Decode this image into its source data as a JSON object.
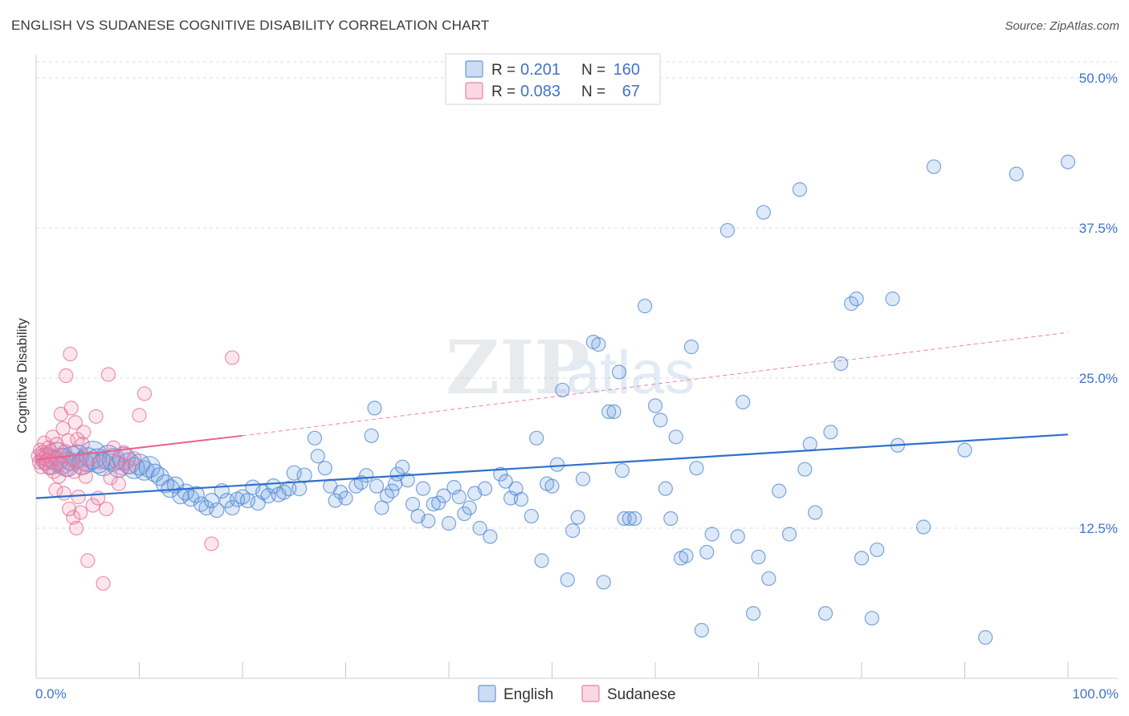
{
  "title": "ENGLISH VS SUDANESE COGNITIVE DISABILITY CORRELATION CHART",
  "source": "Source: ZipAtlas.com",
  "chart_data": {
    "type": "scatter",
    "ylabel": "Cognitive Disability",
    "xlim": [
      0,
      100
    ],
    "ylim": [
      0,
      50
    ],
    "x_tick_labels": [
      "0.0%",
      "100.0%"
    ],
    "y_ticks": [
      12.5,
      25.0,
      37.5,
      50.0
    ],
    "y_tick_labels": [
      "12.5%",
      "25.0%",
      "37.5%",
      "50.0%"
    ],
    "grid": true,
    "legend_placement": "top-center",
    "legend_bottom": [
      "English",
      "Sudanese"
    ],
    "stats": [
      {
        "r_label": "R =",
        "r": "0.201",
        "n_label": "N =",
        "n": "160"
      },
      {
        "r_label": "R =",
        "r": "0.083",
        "n_label": "N =",
        "n": "67"
      }
    ],
    "colors": {
      "english": "#6b9de0",
      "english_line": "#2f6fce",
      "sudanese": "#ef8fb0",
      "sudanese_line": "#e8628f",
      "axis_text": "#3f74c8"
    },
    "series": [
      {
        "name": "English",
        "trend": [
          [
            0,
            15.0
          ],
          [
            100,
            20.3
          ]
        ],
        "points": [
          [
            1,
            18.3
          ],
          [
            1.5,
            18
          ],
          [
            2,
            18.5
          ],
          [
            2.5,
            18.1
          ],
          [
            3,
            17.8
          ],
          [
            3.5,
            18.3
          ],
          [
            4,
            18.5
          ],
          [
            4.5,
            17.9
          ],
          [
            5,
            18.2
          ],
          [
            5.5,
            18.6
          ],
          [
            6,
            18.1
          ],
          [
            6.5,
            17.8
          ],
          [
            7,
            18.4
          ],
          [
            7.5,
            18.2
          ],
          [
            8,
            17.6
          ],
          [
            8.5,
            18.3
          ],
          [
            9,
            17.9
          ],
          [
            9.5,
            17.5
          ],
          [
            10,
            17.8
          ],
          [
            10.5,
            17.3
          ],
          [
            11,
            17.6
          ],
          [
            11.5,
            17.1
          ],
          [
            12,
            16.8
          ],
          [
            12.5,
            16.2
          ],
          [
            13,
            15.8
          ],
          [
            13.5,
            16.1
          ],
          [
            14,
            15.2
          ],
          [
            14.5,
            15.5
          ],
          [
            15,
            15.0
          ],
          [
            15.5,
            15.3
          ],
          [
            16,
            14.5
          ],
          [
            16.5,
            14.2
          ],
          [
            17,
            14.8
          ],
          [
            17.5,
            14.0
          ],
          [
            18,
            15.6
          ],
          [
            18.5,
            14.8
          ],
          [
            19,
            14.2
          ],
          [
            19.5,
            14.9
          ],
          [
            20,
            15.1
          ],
          [
            20.5,
            14.8
          ],
          [
            21,
            15.9
          ],
          [
            21.5,
            14.6
          ],
          [
            22,
            15.5
          ],
          [
            22.5,
            15.2
          ],
          [
            23,
            16.0
          ],
          [
            23.5,
            15.3
          ],
          [
            24,
            15.5
          ],
          [
            24.5,
            15.8
          ],
          [
            25,
            17.1
          ],
          [
            25.5,
            15.8
          ],
          [
            26,
            16.9
          ],
          [
            27,
            20.0
          ],
          [
            27.3,
            18.5
          ],
          [
            28,
            17.5
          ],
          [
            28.5,
            16.0
          ],
          [
            29,
            14.8
          ],
          [
            29.5,
            15.5
          ],
          [
            30,
            15.0
          ],
          [
            31,
            16.0
          ],
          [
            31.5,
            16.3
          ],
          [
            32,
            16.9
          ],
          [
            32.5,
            20.2
          ],
          [
            32.8,
            22.5
          ],
          [
            33,
            16.0
          ],
          [
            33.5,
            14.2
          ],
          [
            34,
            15.2
          ],
          [
            34.5,
            15.6
          ],
          [
            34.8,
            16.2
          ],
          [
            35,
            17.0
          ],
          [
            35.5,
            17.6
          ],
          [
            36,
            16.5
          ],
          [
            36.5,
            14.5
          ],
          [
            37,
            13.5
          ],
          [
            37.5,
            15.8
          ],
          [
            38,
            13.1
          ],
          [
            38.5,
            14.5
          ],
          [
            39,
            14.6
          ],
          [
            39.5,
            15.2
          ],
          [
            40,
            12.9
          ],
          [
            40.5,
            15.9
          ],
          [
            41,
            15.1
          ],
          [
            41.5,
            13.7
          ],
          [
            42,
            14.2
          ],
          [
            42.5,
            15.4
          ],
          [
            43,
            12.5
          ],
          [
            43.5,
            15.8
          ],
          [
            44,
            11.8
          ],
          [
            45,
            17.0
          ],
          [
            45.5,
            16.4
          ],
          [
            46,
            15.0
          ],
          [
            46.5,
            15.8
          ],
          [
            47,
            14.9
          ],
          [
            48,
            13.5
          ],
          [
            48.5,
            20.0
          ],
          [
            49,
            9.8
          ],
          [
            49.5,
            16.2
          ],
          [
            50,
            16.0
          ],
          [
            50.5,
            17.8
          ],
          [
            51,
            24.0
          ],
          [
            51.5,
            8.2
          ],
          [
            52,
            12.3
          ],
          [
            52.5,
            13.4
          ],
          [
            53,
            16.6
          ],
          [
            54,
            28.0
          ],
          [
            54.5,
            27.8
          ],
          [
            55,
            8.0
          ],
          [
            55.5,
            22.2
          ],
          [
            56,
            22.2
          ],
          [
            56.5,
            25.5
          ],
          [
            56.8,
            17.3
          ],
          [
            57,
            13.3
          ],
          [
            57.5,
            13.3
          ],
          [
            58,
            13.3
          ],
          [
            59,
            31.0
          ],
          [
            60,
            22.7
          ],
          [
            60.5,
            21.5
          ],
          [
            61,
            15.8
          ],
          [
            61.5,
            13.3
          ],
          [
            62,
            20.1
          ],
          [
            62.5,
            10.0
          ],
          [
            63,
            10.2
          ],
          [
            63.5,
            27.6
          ],
          [
            64,
            17.5
          ],
          [
            64.5,
            4.0
          ],
          [
            65,
            10.5
          ],
          [
            65.5,
            12.0
          ],
          [
            67,
            37.3
          ],
          [
            68,
            11.8
          ],
          [
            68.5,
            23.0
          ],
          [
            69.5,
            5.4
          ],
          [
            70,
            10.1
          ],
          [
            70.5,
            38.8
          ],
          [
            71,
            8.3
          ],
          [
            72,
            15.6
          ],
          [
            73,
            12.0
          ],
          [
            74,
            40.7
          ],
          [
            74.5,
            17.4
          ],
          [
            75,
            19.5
          ],
          [
            75.5,
            13.8
          ],
          [
            76.5,
            5.4
          ],
          [
            77,
            20.5
          ],
          [
            78,
            26.2
          ],
          [
            79,
            31.2
          ],
          [
            79.5,
            31.6
          ],
          [
            80,
            10.0
          ],
          [
            81,
            5.0
          ],
          [
            81.5,
            10.7
          ],
          [
            83,
            31.6
          ],
          [
            83.5,
            19.4
          ],
          [
            86,
            12.6
          ],
          [
            87,
            42.6
          ],
          [
            90,
            19.0
          ],
          [
            92,
            3.4
          ],
          [
            95,
            42.0
          ],
          [
            100,
            43.0
          ]
        ],
        "sizes": [
          28,
          30,
          34,
          32,
          30,
          30,
          28,
          28,
          30,
          34,
          30,
          28,
          30,
          28,
          26,
          28,
          26,
          26,
          26,
          24,
          26,
          22,
          22,
          22,
          22,
          20,
          20,
          20,
          20,
          20,
          18,
          18,
          18,
          18,
          18,
          18,
          18,
          18,
          18,
          18,
          18,
          18,
          18,
          18,
          18,
          18,
          18,
          18,
          18,
          18,
          18
        ]
      },
      {
        "name": "Sudanese",
        "trend": [
          [
            0,
            18.2
          ],
          [
            20,
            20.2
          ]
        ],
        "trend_extended": [
          [
            20,
            20.2
          ],
          [
            100,
            28.8
          ]
        ],
        "points": [
          [
            0.2,
            18.5
          ],
          [
            0.3,
            18.0
          ],
          [
            0.4,
            19.0
          ],
          [
            0.5,
            17.6
          ],
          [
            0.6,
            18.8
          ],
          [
            0.7,
            18.3
          ],
          [
            0.8,
            19.6
          ],
          [
            0.9,
            17.9
          ],
          [
            1.0,
            18.6
          ],
          [
            1.1,
            18.2
          ],
          [
            1.2,
            19.2
          ],
          [
            1.3,
            17.5
          ],
          [
            1.4,
            18.9
          ],
          [
            1.5,
            18.0
          ],
          [
            1.6,
            20.1
          ],
          [
            1.7,
            17.2
          ],
          [
            1.8,
            18.4
          ],
          [
            1.9,
            15.7
          ],
          [
            2.0,
            19.5
          ],
          [
            2.1,
            18.3
          ],
          [
            2.2,
            16.8
          ],
          [
            2.3,
            17.8
          ],
          [
            2.4,
            22.0
          ],
          [
            2.5,
            18.5
          ],
          [
            2.6,
            20.8
          ],
          [
            2.7,
            15.4
          ],
          [
            2.8,
            18.9
          ],
          [
            2.9,
            25.2
          ],
          [
            3.0,
            17.4
          ],
          [
            3.1,
            19.8
          ],
          [
            3.2,
            14.1
          ],
          [
            3.3,
            27.0
          ],
          [
            3.4,
            22.5
          ],
          [
            3.5,
            18.2
          ],
          [
            3.6,
            13.4
          ],
          [
            3.7,
            17.2
          ],
          [
            3.8,
            21.3
          ],
          [
            3.9,
            12.5
          ],
          [
            4.0,
            19.9
          ],
          [
            4.1,
            15.1
          ],
          [
            4.2,
            18.0
          ],
          [
            4.3,
            13.8
          ],
          [
            4.4,
            17.5
          ],
          [
            4.5,
            19.5
          ],
          [
            4.6,
            20.5
          ],
          [
            4.8,
            16.8
          ],
          [
            5.0,
            9.8
          ],
          [
            5.2,
            18.3
          ],
          [
            5.5,
            14.4
          ],
          [
            5.8,
            21.8
          ],
          [
            6.0,
            15.0
          ],
          [
            6.2,
            18.0
          ],
          [
            6.5,
            7.9
          ],
          [
            6.8,
            14.1
          ],
          [
            7.0,
            25.3
          ],
          [
            7.2,
            16.7
          ],
          [
            7.5,
            19.2
          ],
          [
            7.8,
            18.0
          ],
          [
            8.0,
            16.2
          ],
          [
            8.3,
            17.5
          ],
          [
            8.5,
            18.8
          ],
          [
            9.0,
            17.6
          ],
          [
            9.5,
            18.3
          ],
          [
            10.0,
            21.9
          ],
          [
            10.5,
            23.7
          ],
          [
            17.0,
            11.2
          ],
          [
            19.0,
            26.7
          ]
        ]
      }
    ]
  }
}
